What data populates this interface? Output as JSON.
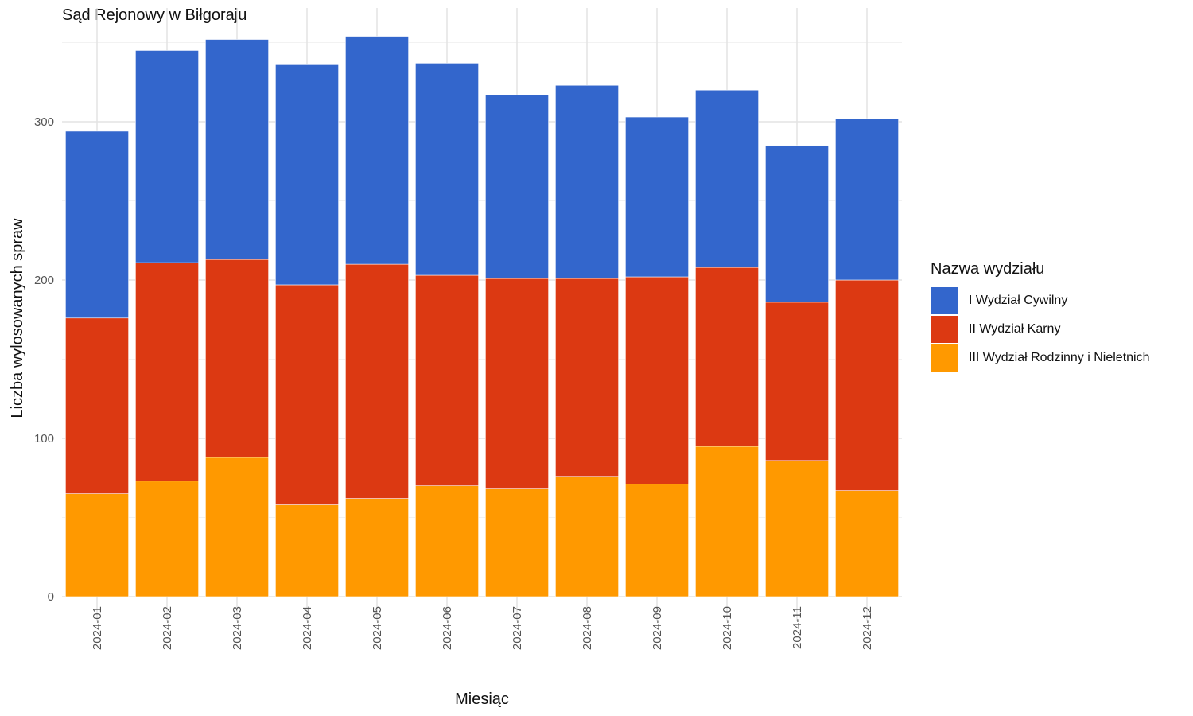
{
  "chart_data": {
    "type": "bar",
    "stacked": true,
    "title": "Sąd Rejonowy w Biłgoraju",
    "xlabel": "Miesiąc",
    "ylabel": "Liczba wylosowanych spraw",
    "ylim": [
      0,
      360
    ],
    "yticks": [
      0,
      100,
      200,
      300
    ],
    "grid": true,
    "legend": {
      "title": "Nazwa wydziału",
      "placement": "right"
    },
    "categories": [
      "2024-01",
      "2024-02",
      "2024-03",
      "2024-04",
      "2024-05",
      "2024-06",
      "2024-07",
      "2024-08",
      "2024-09",
      "2024-10",
      "2024-11",
      "2024-12"
    ],
    "series": [
      {
        "name": "III Wydział Rodzinny i Nieletnich",
        "color": "#FF9900",
        "values": [
          65,
          73,
          88,
          58,
          62,
          70,
          68,
          76,
          71,
          95,
          86,
          67
        ]
      },
      {
        "name": "II Wydział Karny",
        "color": "#DC3912",
        "values": [
          111,
          138,
          125,
          139,
          148,
          133,
          133,
          125,
          131,
          113,
          100,
          133
        ]
      },
      {
        "name": "I Wydział Cywilny",
        "color": "#3366CC",
        "values": [
          118,
          134,
          139,
          139,
          144,
          134,
          116,
          122,
          101,
          112,
          99,
          102
        ]
      }
    ]
  },
  "legend_order": [
    2,
    1,
    0
  ]
}
